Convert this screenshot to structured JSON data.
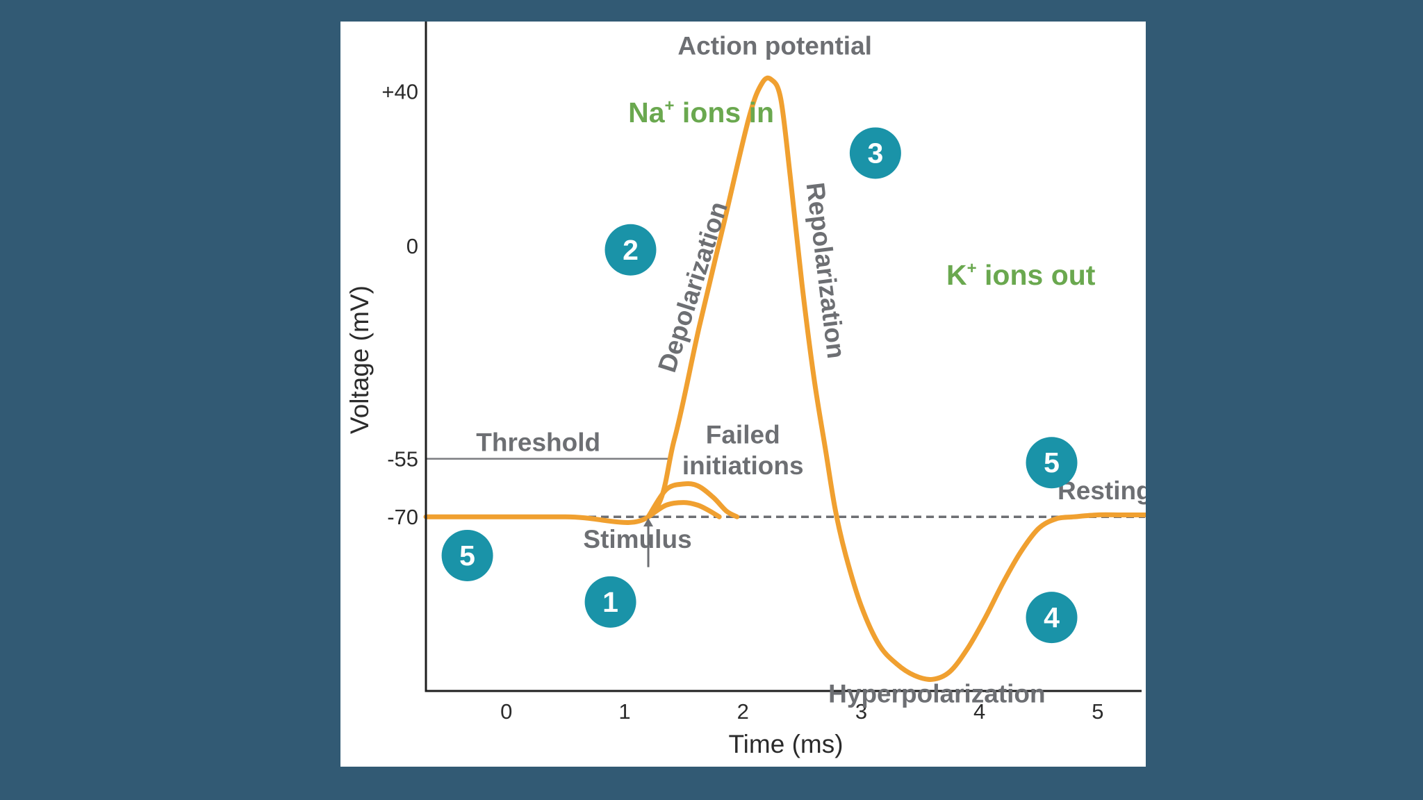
{
  "chart_data": {
    "type": "line",
    "title": "",
    "xlabel": "Time (ms)",
    "ylabel": "Voltage (mV)",
    "x_ticks": [
      0,
      1,
      2,
      3,
      4,
      5
    ],
    "x_tick_labels": [
      "0",
      "1",
      "2",
      "3",
      "4",
      "5"
    ],
    "y_ticks": [
      40,
      0,
      -55,
      -70
    ],
    "y_tick_labels": [
      "+40",
      "0",
      "-55",
      "-70"
    ],
    "xlim": [
      -0.68,
      5.4
    ],
    "ylim": [
      -115,
      58
    ],
    "grid": false,
    "threshold": {
      "y": -55,
      "label": "Threshold"
    },
    "resting_line": {
      "y": -70,
      "style": "dashed"
    },
    "series": [
      {
        "x": [
          -0.68,
          0.5,
          1.2,
          1.42,
          1.63,
          1.84,
          2.05,
          2.16,
          2.24,
          2.32,
          2.4,
          2.5,
          2.6,
          2.7,
          2.78,
          2.87,
          3.0,
          3.15,
          3.3,
          3.45,
          3.6,
          3.75,
          3.9,
          4.05,
          4.2,
          4.35,
          4.5,
          4.65,
          4.8,
          5.0,
          5.2,
          5.4
        ],
        "y": [
          -70,
          -70,
          -70,
          -50,
          -21,
          6,
          33,
          42,
          43,
          38,
          18,
          -10,
          -34,
          -53,
          -68,
          -80,
          -93,
          -103,
          -108,
          -111,
          -112,
          -110,
          -104,
          -96,
          -87,
          -79,
          -73,
          -70.5,
          -70,
          -69.5,
          -69.5,
          -69.5
        ],
        "color": "#f0a030"
      },
      {
        "x": [
          1.2,
          1.35,
          1.5,
          1.62,
          1.75,
          1.86,
          1.95
        ],
        "y": [
          -70,
          -63,
          -61.5,
          -62,
          -65,
          -68.5,
          -70
        ],
        "color": "#f0a030"
      },
      {
        "x": [
          1.2,
          1.35,
          1.5,
          1.62,
          1.72,
          1.8
        ],
        "y": [
          -70,
          -67,
          -66.3,
          -67,
          -68.5,
          -70
        ],
        "color": "#f0a030"
      }
    ],
    "annotations": [
      {
        "text": "Action potential",
        "x": 2.27,
        "y": 49.5
      },
      {
        "text": "Depolarization"
      },
      {
        "text": "Repolarization"
      },
      {
        "text": "Failed",
        "x": 2.0,
        "y": -51
      },
      {
        "text": "initiations",
        "x": 2.0,
        "y": -59
      },
      {
        "text": "Resting state",
        "x": 4.66,
        "y": -65.5
      },
      {
        "text": "Stimulus",
        "x": 0.65,
        "y": -78
      },
      {
        "text": "Hyperpolarization",
        "x": 3.64,
        "y": -118
      },
      {
        "text": "Threshold",
        "x": 0.27,
        "y": -53
      }
    ],
    "ion_labels": {
      "na": {
        "sym": "Na",
        "sup": "+",
        "rest": " ions in",
        "x": 1.03,
        "y": 32
      },
      "k": {
        "sym": "K",
        "sup": "+",
        "rest": " ions out",
        "x": 3.72,
        "y": -10
      }
    },
    "phase_markers": [
      {
        "label": "1",
        "x": 0.88,
        "y": -92
      },
      {
        "label": "2",
        "x": 1.05,
        "y": -1
      },
      {
        "label": "3",
        "x": 3.12,
        "y": 24
      },
      {
        "label": "4",
        "x": 4.61,
        "y": -96
      },
      {
        "label": "5",
        "x": 4.61,
        "y": -56
      },
      {
        "label": "5",
        "x": -0.33,
        "y": -80
      }
    ],
    "colors": {
      "background": "#325a74",
      "panel": "#ffffff",
      "curve": "#f0a030",
      "marker": "#1a93a8",
      "ion_text": "#6aa84f",
      "annotation_text": "#6d6f73",
      "axis": "#1e1e1e"
    }
  }
}
